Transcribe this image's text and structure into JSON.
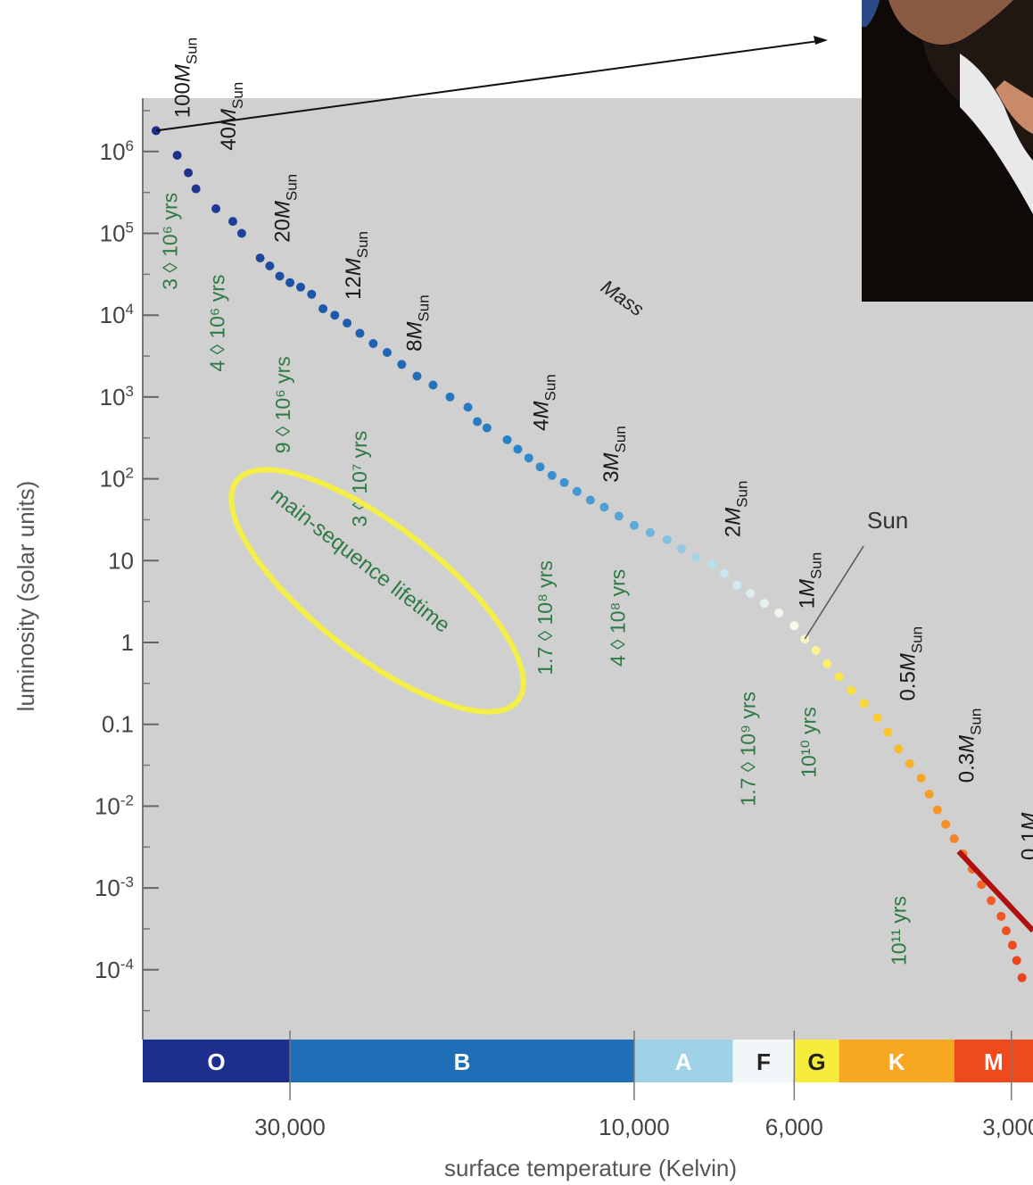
{
  "chart_data": {
    "type": "scatter",
    "title": "",
    "xlabel": "surface temperature (Kelvin)",
    "ylabel": "luminosity (solar units)",
    "x_scale": "log",
    "x_reversed": true,
    "xlim": [
      48000,
      2800
    ],
    "y_scale": "log",
    "ylim": [
      1e-05,
      10000000
    ],
    "grid": false,
    "x_ticks": [
      {
        "value": 30000,
        "label": "30,000"
      },
      {
        "value": 10000,
        "label": "10,000"
      },
      {
        "value": 6000,
        "label": "6,000"
      },
      {
        "value": 3000,
        "label": "3,000"
      }
    ],
    "y_ticks": [
      {
        "value": 1000000,
        "base": "10",
        "exp": "6"
      },
      {
        "value": 100000,
        "base": "10",
        "exp": "5"
      },
      {
        "value": 10000,
        "base": "10",
        "exp": "4"
      },
      {
        "value": 1000,
        "base": "10",
        "exp": "3"
      },
      {
        "value": 100,
        "base": "10",
        "exp": "2"
      },
      {
        "value": 10,
        "base": "10",
        "exp": ""
      },
      {
        "value": 1,
        "base": "1",
        "exp": ""
      },
      {
        "value": 0.1,
        "base": "0.1",
        "exp": ""
      },
      {
        "value": 0.01,
        "base": "10",
        "exp": "-2"
      },
      {
        "value": 0.001,
        "base": "10",
        "exp": "-3"
      },
      {
        "value": 0.0001,
        "base": "10",
        "exp": "-4"
      }
    ],
    "spectral_classes": [
      {
        "label": "O",
        "from": 48000,
        "to": 30000,
        "color": "#1c2f8c"
      },
      {
        "label": "B",
        "from": 30000,
        "to": 10000,
        "color": "#1f6fb8"
      },
      {
        "label": "A",
        "from": 10000,
        "to": 7300,
        "color": "#9fd2e6"
      },
      {
        "label": "F",
        "from": 7300,
        "to": 6000,
        "color": "#f2f6f8"
      },
      {
        "label": "G",
        "from": 6000,
        "to": 5200,
        "color": "#f6ec3c"
      },
      {
        "label": "K",
        "from": 5200,
        "to": 3600,
        "color": "#f8a820"
      },
      {
        "label": "M",
        "from": 3600,
        "to": 2800,
        "color": "#ee4a1e"
      }
    ],
    "mass_labels": [
      {
        "value": "100",
        "T": 44000,
        "L": 2000000
      },
      {
        "value": "40",
        "T": 38000,
        "L": 800000
      },
      {
        "value": "20",
        "T": 32000,
        "L": 60000
      },
      {
        "value": "12",
        "T": 25500,
        "L": 12000
      },
      {
        "value": "8",
        "T": 21000,
        "L": 2800
      },
      {
        "value": "4",
        "T": 14000,
        "L": 300
      },
      {
        "value": "3",
        "T": 11200,
        "L": 70
      },
      {
        "value": "2",
        "T": 7600,
        "L": 15
      },
      {
        "value": "1",
        "T": 6000,
        "L": 2
      },
      {
        "value": "0.5",
        "T": 4350,
        "L": 0.15
      },
      {
        "value": "0.3",
        "T": 3600,
        "L": 0.015
      },
      {
        "value": "0.1",
        "T": 2950,
        "L": 0.0017
      }
    ],
    "mass_unit": "M",
    "mass_subscript": "Sun",
    "mass_axis_label": "Mass",
    "lifetimes": [
      {
        "text": "3 ◊ 10⁶ yrs",
        "T": 43000,
        "L": 80000
      },
      {
        "text": "4 ◊ 10⁶ yrs",
        "T": 37000,
        "L": 8000
      },
      {
        "text": "9 ◊ 10⁶ yrs",
        "T": 30000,
        "L": 800
      },
      {
        "text": "3 ◊ 10⁷ yrs",
        "T": 23500,
        "L": 100
      },
      {
        "text": "1.7 ◊ 10⁸ yrs",
        "T": 13000,
        "L": 2
      },
      {
        "text": "4 ◊ 10⁸ yrs",
        "T": 10300,
        "L": 2
      },
      {
        "text": "1.7 ◊ 10⁹ yrs",
        "T": 6800,
        "L": 0.05
      },
      {
        "text": "10¹⁰ yrs",
        "T": 5600,
        "L": 0.06
      },
      {
        "text": "10¹¹ yrs",
        "T": 4200,
        "L": 0.0003
      }
    ],
    "lifetime_caption": "main-sequence lifetime",
    "sun_label": "Sun",
    "sun_point": {
      "T": 5800,
      "L": 1
    },
    "main_sequence": [
      {
        "T": 46000,
        "L": 1800000
      },
      {
        "T": 43000,
        "L": 900000
      },
      {
        "T": 41500,
        "L": 550000
      },
      {
        "T": 40500,
        "L": 350000
      },
      {
        "T": 38000,
        "L": 200000
      },
      {
        "T": 36000,
        "L": 140000
      },
      {
        "T": 35000,
        "L": 100000
      },
      {
        "T": 33000,
        "L": 50000
      },
      {
        "T": 32000,
        "L": 40000
      },
      {
        "T": 31000,
        "L": 30000
      },
      {
        "T": 30000,
        "L": 25000
      },
      {
        "T": 29000,
        "L": 22000
      },
      {
        "T": 28000,
        "L": 18000
      },
      {
        "T": 27000,
        "L": 12000
      },
      {
        "T": 26000,
        "L": 10000
      },
      {
        "T": 25000,
        "L": 8000
      },
      {
        "T": 24000,
        "L": 6000
      },
      {
        "T": 23000,
        "L": 4500
      },
      {
        "T": 22000,
        "L": 3500
      },
      {
        "T": 21000,
        "L": 2500
      },
      {
        "T": 20000,
        "L": 1800
      },
      {
        "T": 19000,
        "L": 1400
      },
      {
        "T": 18000,
        "L": 1000
      },
      {
        "T": 17000,
        "L": 750
      },
      {
        "T": 16500,
        "L": 500
      },
      {
        "T": 16000,
        "L": 420
      },
      {
        "T": 15000,
        "L": 300
      },
      {
        "T": 14500,
        "L": 230
      },
      {
        "T": 14000,
        "L": 180
      },
      {
        "T": 13500,
        "L": 140
      },
      {
        "T": 13000,
        "L": 110
      },
      {
        "T": 12500,
        "L": 90
      },
      {
        "T": 12000,
        "L": 70
      },
      {
        "T": 11500,
        "L": 55
      },
      {
        "T": 11000,
        "L": 45
      },
      {
        "T": 10500,
        "L": 35
      },
      {
        "T": 10000,
        "L": 27
      },
      {
        "T": 9500,
        "L": 22
      },
      {
        "T": 9000,
        "L": 18
      },
      {
        "T": 8600,
        "L": 14
      },
      {
        "T": 8200,
        "L": 11
      },
      {
        "T": 7800,
        "L": 9
      },
      {
        "T": 7500,
        "L": 7
      },
      {
        "T": 7200,
        "L": 5
      },
      {
        "T": 6900,
        "L": 4
      },
      {
        "T": 6600,
        "L": 3
      },
      {
        "T": 6300,
        "L": 2.3
      },
      {
        "T": 6000,
        "L": 1.6
      },
      {
        "T": 5800,
        "L": 1.1
      },
      {
        "T": 5600,
        "L": 0.8
      },
      {
        "T": 5400,
        "L": 0.55
      },
      {
        "T": 5200,
        "L": 0.38
      },
      {
        "T": 5000,
        "L": 0.26
      },
      {
        "T": 4800,
        "L": 0.18
      },
      {
        "T": 4600,
        "L": 0.12
      },
      {
        "T": 4450,
        "L": 0.08
      },
      {
        "T": 4300,
        "L": 0.05
      },
      {
        "T": 4150,
        "L": 0.033
      },
      {
        "T": 4000,
        "L": 0.022
      },
      {
        "T": 3900,
        "L": 0.014
      },
      {
        "T": 3800,
        "L": 0.009
      },
      {
        "T": 3700,
        "L": 0.006
      },
      {
        "T": 3600,
        "L": 0.004
      },
      {
        "T": 3500,
        "L": 0.0026
      },
      {
        "T": 3400,
        "L": 0.0017
      },
      {
        "T": 3300,
        "L": 0.0011
      },
      {
        "T": 3200,
        "L": 0.0007
      },
      {
        "T": 3100,
        "L": 0.00045
      },
      {
        "T": 3050,
        "L": 0.0003
      },
      {
        "T": 2990,
        "L": 0.0002
      },
      {
        "T": 2950,
        "L": 0.00013
      },
      {
        "T": 2900,
        "L": 8e-05
      }
    ]
  }
}
